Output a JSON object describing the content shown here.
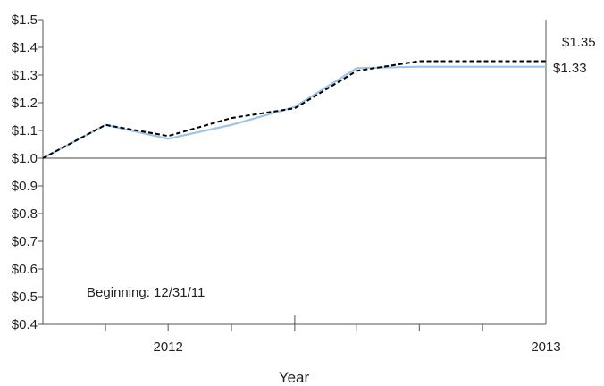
{
  "chart_data": {
    "type": "line",
    "xlabel": "Year",
    "ylabel": "",
    "title": "",
    "ylim": [
      0.4,
      1.5
    ],
    "yticks": [
      {
        "value": 1.5,
        "label": "$1.5"
      },
      {
        "value": 1.4,
        "label": "$1.4"
      },
      {
        "value": 1.3,
        "label": "$1.3"
      },
      {
        "value": 1.2,
        "label": "$1.2"
      },
      {
        "value": 1.1,
        "label": "$1.1"
      },
      {
        "value": 1.0,
        "label": "$1.0"
      },
      {
        "value": 0.9,
        "label": "$0.9"
      },
      {
        "value": 0.8,
        "label": "$0.8"
      },
      {
        "value": 0.7,
        "label": "$0.7"
      },
      {
        "value": 0.6,
        "label": "$0.6"
      },
      {
        "value": 0.5,
        "label": "$0.5"
      },
      {
        "value": 0.4,
        "label": "$0.4"
      }
    ],
    "xlim": [
      "2011-12-31",
      "2013-12-31"
    ],
    "x": [
      "2011-12-31",
      "2012-03-31",
      "2012-06-30",
      "2012-09-30",
      "2012-12-31",
      "2013-03-31",
      "2013-06-30",
      "2013-09-30",
      "2013-12-31"
    ],
    "xtick_labels": [
      {
        "x": "2012-06-30",
        "label": "2012"
      },
      {
        "x": "2013-12-31",
        "label": "2013"
      }
    ],
    "xtick_marks": [
      "2012-03-31",
      "2012-06-30",
      "2012-09-30",
      "2012-12-31",
      "2013-03-31",
      "2013-06-30",
      "2013-09-30"
    ],
    "xtick_major": "2012-12-31",
    "reference_line": 1.0,
    "series": [
      {
        "style": "solid",
        "color": "#9dc3e6",
        "values": [
          1.0,
          1.12,
          1.07,
          1.12,
          1.185,
          1.325,
          1.33,
          1.33,
          1.33
        ],
        "end_label": "$1.33"
      },
      {
        "style": "dashed",
        "color": "#000000",
        "values": [
          1.0,
          1.12,
          1.08,
          1.145,
          1.18,
          1.315,
          1.35,
          1.35,
          1.35
        ],
        "end_label": "$1.35"
      }
    ],
    "annotations": [
      "Beginning: 12/31/11"
    ],
    "grid": false,
    "legend": "none"
  }
}
